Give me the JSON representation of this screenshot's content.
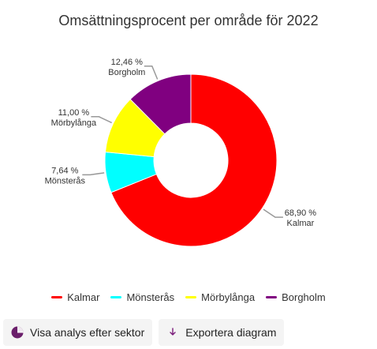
{
  "chart_data": {
    "type": "pie",
    "title": "Omsättningsprocent per område för 2022",
    "categories": [
      "Kalmar",
      "Mönsterås",
      "Mörbylånga",
      "Borgholm"
    ],
    "values": [
      68.9,
      7.64,
      11.0,
      12.46
    ],
    "value_labels": [
      "68,90 %",
      "7,64 %",
      "11,00 %",
      "12,46 %"
    ],
    "colors": [
      "#ff0000",
      "#00ffff",
      "#ffff00",
      "#800080"
    ],
    "donut": true,
    "legend_position": "bottom"
  },
  "actions": {
    "sector_label": "Visa analys efter sektor",
    "export_label": "Exportera diagram"
  },
  "icons": {
    "sector": "pie-chart-icon",
    "export": "download-arrow-icon"
  }
}
